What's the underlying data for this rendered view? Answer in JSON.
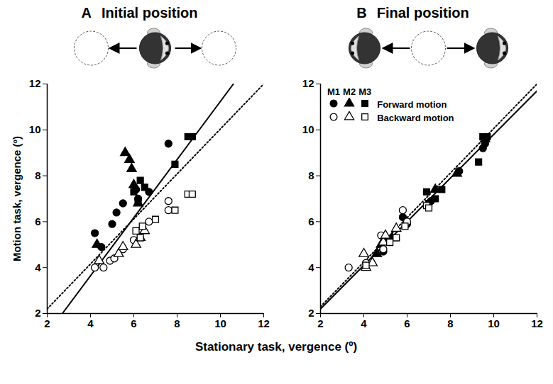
{
  "xlabel": "Stationary task, vergence (º)",
  "chart_data": [
    {
      "type": "scatter",
      "letter": "A",
      "title": "Initial position",
      "ylabel": "Motion task, vergence (º)",
      "xlim": [
        2,
        12
      ],
      "ylim": [
        2,
        12
      ],
      "xticks": [
        2,
        4,
        6,
        8,
        10,
        12
      ],
      "yticks": [
        2,
        4,
        6,
        8,
        10,
        12
      ],
      "series": [
        {
          "type": "line",
          "line_style": "solid",
          "color": "#000000",
          "x": [
            2.7,
            10.6
          ],
          "values": [
            2,
            12
          ]
        },
        {
          "type": "line",
          "line_style": "dotted",
          "color": "#000000",
          "x": [
            2,
            12
          ],
          "values": [
            2.2,
            12
          ]
        },
        {
          "monkey": "M1",
          "motion": "Forward motion",
          "marker": "filled-circle",
          "color": "#000000",
          "x": [
            4.2,
            4.5,
            5.0,
            5.2,
            5.5,
            6.2,
            6.7,
            7.6,
            6.1
          ],
          "values": [
            5.5,
            4.9,
            5.9,
            6.4,
            6.8,
            7.0,
            7.3,
            9.4,
            7.4
          ]
        },
        {
          "monkey": "M2",
          "motion": "Forward motion",
          "marker": "filled-triangle",
          "color": "#000000",
          "x": [
            4.3,
            5.6,
            5.8,
            5.9,
            6.0,
            6.2
          ],
          "values": [
            5.0,
            9.0,
            8.7,
            8.3,
            7.6,
            6.8
          ]
        },
        {
          "monkey": "M3",
          "motion": "Forward motion",
          "marker": "filled-square",
          "color": "#000000",
          "x": [
            6.0,
            6.2,
            6.5,
            7.9,
            8.5,
            8.7,
            6.3
          ],
          "values": [
            7.3,
            6.9,
            7.5,
            8.5,
            9.7,
            9.7,
            7.8
          ]
        },
        {
          "monkey": "M1",
          "motion": "Backward motion",
          "marker": "open-circle",
          "color": "#000000",
          "x": [
            4.2,
            4.6,
            4.9,
            5.1,
            5.5,
            6.0,
            6.7,
            7.6,
            7.6
          ],
          "values": [
            4.0,
            4.0,
            4.3,
            4.4,
            4.8,
            5.2,
            6.0,
            6.9,
            6.5
          ]
        },
        {
          "monkey": "M2",
          "motion": "Backward motion",
          "marker": "open-triangle",
          "color": "#000000",
          "x": [
            4.4,
            5.3,
            5.5,
            6.1,
            6.3,
            6.5
          ],
          "values": [
            4.3,
            4.6,
            4.9,
            5.0,
            5.3,
            5.6
          ]
        },
        {
          "monkey": "M3",
          "motion": "Backward motion",
          "marker": "open-square",
          "color": "#000000",
          "x": [
            6.1,
            6.3,
            6.4,
            7.9,
            8.5,
            8.7,
            7.0
          ],
          "values": [
            5.6,
            5.3,
            5.8,
            6.5,
            7.2,
            7.2,
            6.1
          ]
        }
      ]
    },
    {
      "type": "scatter",
      "letter": "B",
      "title": "Final position",
      "legend": "top-left",
      "xlim": [
        2,
        12
      ],
      "ylim": [
        2,
        12
      ],
      "xticks": [
        2,
        4,
        6,
        8,
        10,
        12
      ],
      "yticks": [
        2,
        4,
        6,
        8,
        10,
        12
      ],
      "series": [
        {
          "type": "line",
          "line_style": "solid",
          "color": "#000000",
          "x": [
            2,
            12
          ],
          "values": [
            2.2,
            11.7
          ]
        },
        {
          "type": "line",
          "line_style": "dotted",
          "color": "#000000",
          "x": [
            2,
            12
          ],
          "values": [
            2.3,
            12
          ]
        },
        {
          "monkey": "M1",
          "motion": "Forward motion",
          "marker": "filled-circle",
          "color": "#000000",
          "x": [
            4.9,
            5.8,
            6.0,
            7.1,
            8.4,
            9.6,
            9.5
          ],
          "values": [
            4.7,
            6.2,
            5.9,
            6.9,
            8.2,
            9.4,
            9.2
          ]
        },
        {
          "monkey": "M2",
          "motion": "Forward motion",
          "marker": "filled-triangle",
          "color": "#000000",
          "x": [
            4.6,
            4.8,
            5.3,
            7.3,
            8.3,
            9.6
          ],
          "values": [
            4.6,
            5.0,
            5.3,
            7.4,
            8.1,
            9.6
          ]
        },
        {
          "monkey": "M3",
          "motion": "Forward motion",
          "marker": "filled-square",
          "color": "#000000",
          "x": [
            6.9,
            7.3,
            7.6,
            9.3,
            9.5,
            9.7,
            7.0
          ],
          "values": [
            7.3,
            7.0,
            7.4,
            8.6,
            9.7,
            9.7,
            6.8
          ]
        },
        {
          "monkey": "M1",
          "motion": "Backward motion",
          "marker": "open-circle",
          "color": "#000000",
          "x": [
            3.3,
            4.1,
            4.8,
            5.8,
            6.0,
            4.9
          ],
          "values": [
            4.0,
            4.2,
            5.4,
            6.5,
            6.0,
            4.8
          ]
        },
        {
          "monkey": "M2",
          "motion": "Backward motion",
          "marker": "open-triangle",
          "color": "#000000",
          "x": [
            4.0,
            4.1,
            4.9,
            5.0,
            5.5,
            4.4
          ],
          "values": [
            4.6,
            4.0,
            5.1,
            5.4,
            5.7,
            4.2
          ]
        },
        {
          "monkey": "M3",
          "motion": "Backward motion",
          "marker": "open-square",
          "color": "#000000",
          "x": [
            4.1,
            5.2,
            5.5,
            6.9,
            7.0,
            5.9
          ],
          "values": [
            4.1,
            5.1,
            5.3,
            6.7,
            6.6,
            5.8
          ]
        }
      ]
    }
  ]
}
